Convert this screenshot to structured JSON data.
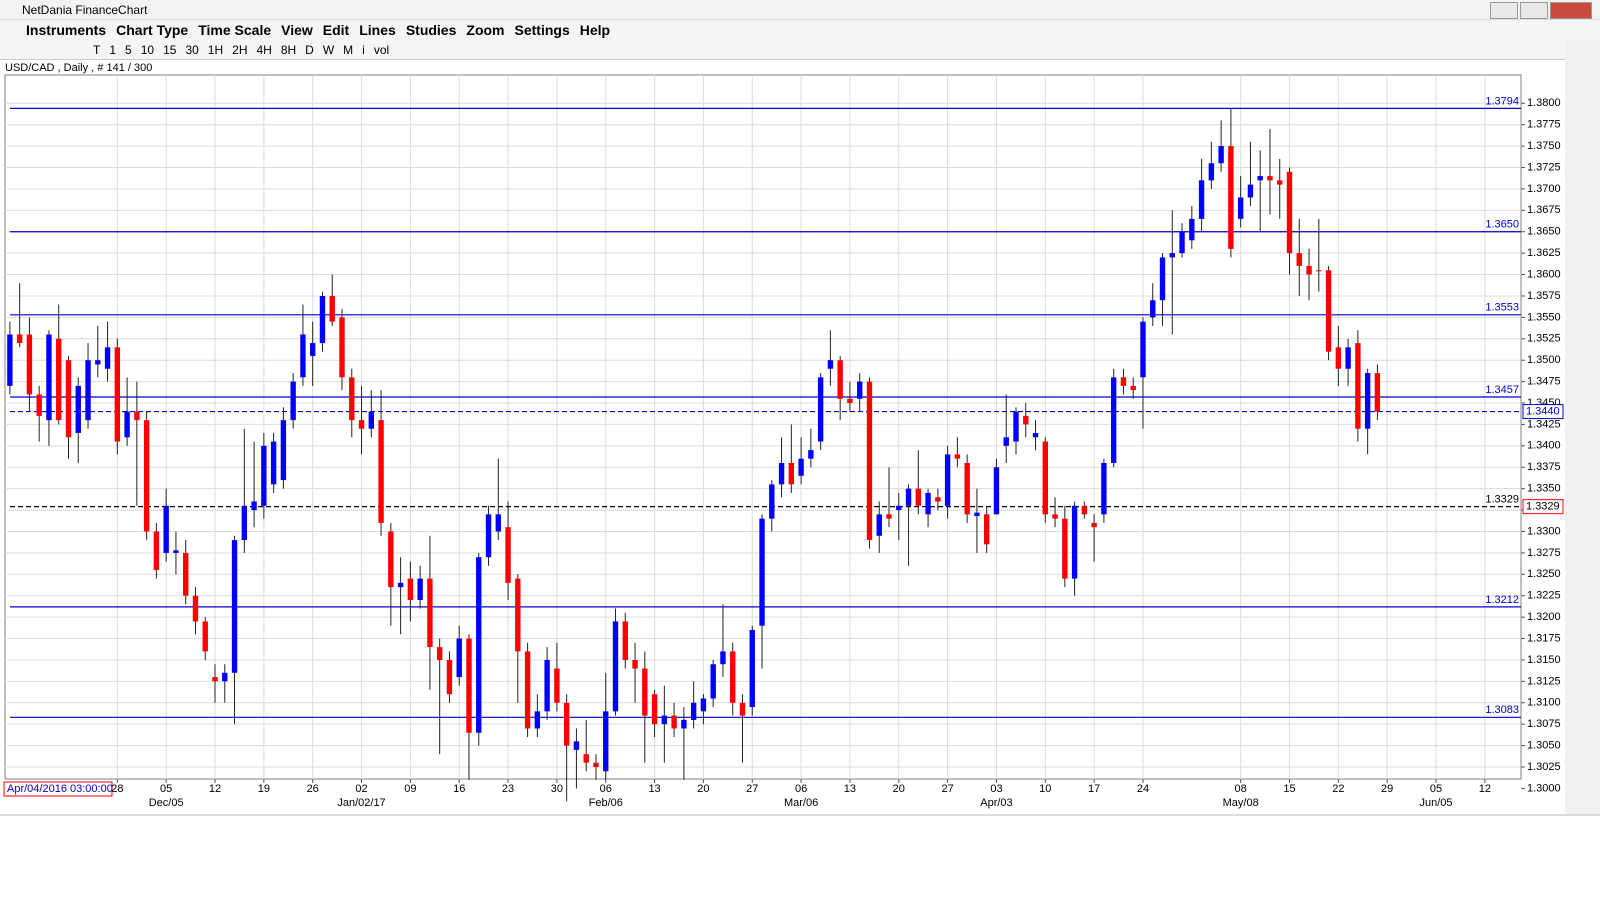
{
  "window_title": "NetDania FinanceChart",
  "menu": [
    "Instruments",
    "Chart Type",
    "Time Scale",
    "View",
    "Edit",
    "Lines",
    "Studies",
    "Zoom",
    "Settings",
    "Help"
  ],
  "toolbar": [
    "T",
    "1",
    "5",
    "10",
    "15",
    "30",
    "1H",
    "2H",
    "4H",
    "8H",
    "D",
    "W",
    "M",
    "i",
    "vol"
  ],
  "chart_data": {
    "type": "candlestick",
    "title": "USD/CAD , Daily , # 141 / 300",
    "cursor_label": "Apr/04/2016 03:00:00",
    "up_color": "#0000ff",
    "down_color": "#ff0000",
    "grid": true,
    "xlim": [
      -0.5,
      154.7
    ],
    "ylim": [
      1.3011,
      1.3833
    ],
    "yticks": [
      {
        "value": 1.3,
        "label": "1.3000"
      },
      {
        "value": 1.3025,
        "label": "1.3025"
      },
      {
        "value": 1.305,
        "label": "1.3050"
      },
      {
        "value": 1.3075,
        "label": "1.3075"
      },
      {
        "value": 1.31,
        "label": "1.3100"
      },
      {
        "value": 1.3125,
        "label": "1.3125"
      },
      {
        "value": 1.315,
        "label": "1.3150"
      },
      {
        "value": 1.3175,
        "label": "1.3175"
      },
      {
        "value": 1.32,
        "label": "1.3200"
      },
      {
        "value": 1.3225,
        "label": "1.3225"
      },
      {
        "value": 1.325,
        "label": "1.3250"
      },
      {
        "value": 1.3275,
        "label": "1.3275"
      },
      {
        "value": 1.33,
        "label": "1.3300"
      },
      {
        "value": 1.3325,
        "label": "1.3325"
      },
      {
        "value": 1.335,
        "label": "1.3350"
      },
      {
        "value": 1.3375,
        "label": "1.3375"
      },
      {
        "value": 1.34,
        "label": "1.3400"
      },
      {
        "value": 1.3425,
        "label": "1.3425"
      },
      {
        "value": 1.345,
        "label": "1.3450"
      },
      {
        "value": 1.3475,
        "label": "1.3475"
      },
      {
        "value": 1.35,
        "label": "1.3500"
      },
      {
        "value": 1.3525,
        "label": "1.3525"
      },
      {
        "value": 1.355,
        "label": "1.3550"
      },
      {
        "value": 1.3575,
        "label": "1.3575"
      },
      {
        "value": 1.36,
        "label": "1.3600"
      },
      {
        "value": 1.3625,
        "label": "1.3625"
      },
      {
        "value": 1.365,
        "label": "1.3650"
      },
      {
        "value": 1.3675,
        "label": "1.3675"
      },
      {
        "value": 1.37,
        "label": "1.3700"
      },
      {
        "value": 1.3725,
        "label": "1.3725"
      },
      {
        "value": 1.375,
        "label": "1.3750"
      },
      {
        "value": 1.3775,
        "label": "1.3775"
      },
      {
        "value": 1.38,
        "label": "1.3800"
      }
    ],
    "xticks": [
      {
        "value": 11,
        "label": "28"
      },
      {
        "value": 16,
        "label": "05"
      },
      {
        "value": 21,
        "label": "12"
      },
      {
        "value": 26,
        "label": "19"
      },
      {
        "value": 31,
        "label": "26"
      },
      {
        "value": 36,
        "label": "02"
      },
      {
        "value": 41,
        "label": "09"
      },
      {
        "value": 46,
        "label": "16"
      },
      {
        "value": 51,
        "label": "23"
      },
      {
        "value": 56,
        "label": "30"
      },
      {
        "value": 61,
        "label": "06"
      },
      {
        "value": 66,
        "label": "13"
      },
      {
        "value": 71,
        "label": "20"
      },
      {
        "value": 76,
        "label": "27"
      },
      {
        "value": 81,
        "label": "06"
      },
      {
        "value": 86,
        "label": "13"
      },
      {
        "value": 91,
        "label": "20"
      },
      {
        "value": 96,
        "label": "27"
      },
      {
        "value": 101,
        "label": "03"
      },
      {
        "value": 106,
        "label": "10"
      },
      {
        "value": 111,
        "label": "17"
      },
      {
        "value": 116,
        "label": "24"
      },
      {
        "value": 126,
        "label": "08"
      },
      {
        "value": 131,
        "label": "15"
      },
      {
        "value": 136,
        "label": "22"
      },
      {
        "value": 141,
        "label": "29"
      },
      {
        "value": 146,
        "label": "05"
      },
      {
        "value": 151,
        "label": "12"
      }
    ],
    "month_ticks": [
      {
        "value": 16,
        "label": "Dec/05"
      },
      {
        "value": 36,
        "label": "Jan/02/17"
      },
      {
        "value": 61,
        "label": "Feb/06"
      },
      {
        "value": 81,
        "label": "Mar/06"
      },
      {
        "value": 101,
        "label": "Apr/03"
      },
      {
        "value": 126,
        "label": "May/08"
      },
      {
        "value": 146,
        "label": "Jun/05"
      }
    ],
    "levels": [
      {
        "value": 1.3794,
        "label": "1.3794",
        "color": "#0000cc",
        "style": "solid"
      },
      {
        "value": 1.365,
        "label": "1.3650",
        "color": "#0000cc",
        "style": "solid"
      },
      {
        "value": 1.3553,
        "label": "1.3553",
        "color": "#0000cc",
        "style": "solid"
      },
      {
        "value": 1.3457,
        "label": "1.3457",
        "color": "#0000cc",
        "style": "solid"
      },
      {
        "value": 1.3212,
        "label": "1.3212",
        "color": "#0000cc",
        "style": "solid"
      },
      {
        "value": 1.3083,
        "label": "1.3083",
        "color": "#0000cc",
        "style": "solid"
      },
      {
        "value": 1.344,
        "label": "1.3440",
        "color": "#0000cc",
        "style": "dashed",
        "axis_box": "#0000cc"
      },
      {
        "value": 1.3329,
        "label": "1.3329",
        "color": "#000000",
        "style": "dashed",
        "axis_box": "#ff0000"
      }
    ],
    "ohlc": [
      [
        1.347,
        1.3545,
        1.346,
        1.353
      ],
      [
        1.353,
        1.359,
        1.3515,
        1.352
      ],
      [
        1.353,
        1.355,
        1.344,
        1.346
      ],
      [
        1.346,
        1.347,
        1.3405,
        1.3435
      ],
      [
        1.343,
        1.3535,
        1.34,
        1.353
      ],
      [
        1.3525,
        1.3565,
        1.3425,
        1.343
      ],
      [
        1.35,
        1.3505,
        1.3385,
        1.341
      ],
      [
        1.3415,
        1.348,
        1.338,
        1.347
      ],
      [
        1.343,
        1.352,
        1.342,
        1.35
      ],
      [
        1.3495,
        1.354,
        1.348,
        1.35
      ],
      [
        1.349,
        1.3545,
        1.3475,
        1.3515
      ],
      [
        1.3515,
        1.3525,
        1.339,
        1.3405
      ],
      [
        1.341,
        1.348,
        1.34,
        1.344
      ],
      [
        1.344,
        1.3475,
        1.333,
        1.343
      ],
      [
        1.343,
        1.344,
        1.329,
        1.33
      ],
      [
        1.33,
        1.331,
        1.3245,
        1.3255
      ],
      [
        1.3275,
        1.335,
        1.3265,
        1.333
      ],
      [
        1.3275,
        1.33,
        1.325,
        1.3278
      ],
      [
        1.3275,
        1.329,
        1.3215,
        1.3225
      ],
      [
        1.3225,
        1.3235,
        1.318,
        1.3195
      ],
      [
        1.3195,
        1.32,
        1.315,
        1.316
      ],
      [
        1.313,
        1.3145,
        1.31,
        1.3125
      ],
      [
        1.3125,
        1.3145,
        1.31,
        1.3135
      ],
      [
        1.3135,
        1.3295,
        1.3075,
        1.329
      ],
      [
        1.329,
        1.342,
        1.3275,
        1.333
      ],
      [
        1.3325,
        1.3405,
        1.3305,
        1.3335
      ],
      [
        1.333,
        1.3415,
        1.3315,
        1.34
      ],
      [
        1.3355,
        1.3415,
        1.3345,
        1.3405
      ],
      [
        1.336,
        1.3445,
        1.335,
        1.343
      ],
      [
        1.343,
        1.3485,
        1.342,
        1.3475
      ],
      [
        1.348,
        1.3565,
        1.347,
        1.353
      ],
      [
        1.3505,
        1.3545,
        1.347,
        1.352
      ],
      [
        1.352,
        1.358,
        1.351,
        1.3575
      ],
      [
        1.3575,
        1.36,
        1.354,
        1.3545
      ],
      [
        1.355,
        1.356,
        1.3465,
        1.348
      ],
      [
        1.348,
        1.349,
        1.341,
        1.343
      ],
      [
        1.343,
        1.347,
        1.339,
        1.342
      ],
      [
        1.342,
        1.3465,
        1.341,
        1.344
      ],
      [
        1.343,
        1.3465,
        1.3295,
        1.331
      ],
      [
        1.33,
        1.331,
        1.319,
        1.3235
      ],
      [
        1.3235,
        1.327,
        1.318,
        1.324
      ],
      [
        1.3245,
        1.3265,
        1.3195,
        1.322
      ],
      [
        1.322,
        1.326,
        1.321,
        1.3245
      ],
      [
        1.3245,
        1.3295,
        1.3115,
        1.3165
      ],
      [
        1.3165,
        1.3175,
        1.304,
        1.315
      ],
      [
        1.315,
        1.316,
        1.31,
        1.311
      ],
      [
        1.313,
        1.319,
        1.312,
        1.3175
      ],
      [
        1.3175,
        1.318,
        1.301,
        1.3065
      ],
      [
        1.3065,
        1.3275,
        1.305,
        1.327
      ],
      [
        1.327,
        1.333,
        1.326,
        1.332
      ],
      [
        1.33,
        1.3385,
        1.329,
        1.332
      ],
      [
        1.3305,
        1.3335,
        1.322,
        1.324
      ],
      [
        1.3245,
        1.325,
        1.31,
        1.316
      ],
      [
        1.316,
        1.317,
        1.306,
        1.307
      ],
      [
        1.307,
        1.311,
        1.306,
        1.309
      ],
      [
        1.309,
        1.3165,
        1.308,
        1.315
      ],
      [
        1.314,
        1.317,
        1.309,
        1.31
      ],
      [
        1.31,
        1.311,
        1.2985,
        1.305
      ],
      [
        1.3045,
        1.307,
        1.3,
        1.3055
      ],
      [
        1.304,
        1.308,
        1.302,
        1.303
      ],
      [
        1.303,
        1.304,
        1.301,
        1.3025
      ],
      [
        1.302,
        1.3135,
        1.301,
        1.309
      ],
      [
        1.309,
        1.321,
        1.3085,
        1.3195
      ],
      [
        1.3195,
        1.3205,
        1.314,
        1.315
      ],
      [
        1.315,
        1.317,
        1.31,
        1.314
      ],
      [
        1.314,
        1.316,
        1.303,
        1.3085
      ],
      [
        1.311,
        1.3115,
        1.306,
        1.3075
      ],
      [
        1.3075,
        1.312,
        1.303,
        1.3085
      ],
      [
        1.3085,
        1.31,
        1.306,
        1.307
      ],
      [
        1.307,
        1.3095,
        1.301,
        1.308
      ],
      [
        1.308,
        1.3125,
        1.307,
        1.31
      ],
      [
        1.309,
        1.311,
        1.3075,
        1.3105
      ],
      [
        1.3105,
        1.315,
        1.3095,
        1.3145
      ],
      [
        1.3145,
        1.3215,
        1.313,
        1.316
      ],
      [
        1.316,
        1.317,
        1.3085,
        1.31
      ],
      [
        1.31,
        1.311,
        1.303,
        1.3085
      ],
      [
        1.3095,
        1.319,
        1.3085,
        1.3185
      ],
      [
        1.319,
        1.332,
        1.314,
        1.3315
      ],
      [
        1.3315,
        1.336,
        1.33,
        1.3355
      ],
      [
        1.3355,
        1.341,
        1.334,
        1.338
      ],
      [
        1.338,
        1.3425,
        1.3345,
        1.3355
      ],
      [
        1.3365,
        1.341,
        1.3355,
        1.3385
      ],
      [
        1.3385,
        1.342,
        1.3375,
        1.3395
      ],
      [
        1.3405,
        1.3485,
        1.3395,
        1.348
      ],
      [
        1.349,
        1.3535,
        1.347,
        1.35
      ],
      [
        1.35,
        1.3505,
        1.343,
        1.3455
      ],
      [
        1.3455,
        1.3475,
        1.344,
        1.345
      ],
      [
        1.3455,
        1.3485,
        1.344,
        1.3475
      ],
      [
        1.3475,
        1.348,
        1.328,
        1.329
      ],
      [
        1.3295,
        1.3335,
        1.3275,
        1.332
      ],
      [
        1.332,
        1.3375,
        1.3305,
        1.3315
      ],
      [
        1.3325,
        1.3345,
        1.329,
        1.333
      ],
      [
        1.333,
        1.3355,
        1.326,
        1.335
      ],
      [
        1.335,
        1.3395,
        1.332,
        1.333
      ],
      [
        1.332,
        1.335,
        1.3305,
        1.3345
      ],
      [
        1.334,
        1.335,
        1.3325,
        1.3335
      ],
      [
        1.333,
        1.34,
        1.3315,
        1.339
      ],
      [
        1.339,
        1.341,
        1.3375,
        1.3385
      ],
      [
        1.338,
        1.339,
        1.331,
        1.332
      ],
      [
        1.3318,
        1.335,
        1.3275,
        1.3322
      ],
      [
        1.332,
        1.333,
        1.3275,
        1.3285
      ],
      [
        1.332,
        1.3385,
        1.332,
        1.3375
      ],
      [
        1.34,
        1.346,
        1.338,
        1.341
      ],
      [
        1.3405,
        1.3445,
        1.339,
        1.344
      ],
      [
        1.3435,
        1.345,
        1.341,
        1.3425
      ],
      [
        1.341,
        1.343,
        1.3395,
        1.3415
      ],
      [
        1.3405,
        1.341,
        1.331,
        1.332
      ],
      [
        1.332,
        1.334,
        1.3305,
        1.3315
      ],
      [
        1.3315,
        1.333,
        1.3235,
        1.3245
      ],
      [
        1.3245,
        1.3335,
        1.3225,
        1.333
      ],
      [
        1.333,
        1.3335,
        1.3315,
        1.332
      ],
      [
        1.331,
        1.332,
        1.3265,
        1.3305
      ],
      [
        1.332,
        1.3385,
        1.331,
        1.338
      ],
      [
        1.338,
        1.349,
        1.3375,
        1.348
      ],
      [
        1.348,
        1.349,
        1.346,
        1.347
      ],
      [
        1.347,
        1.348,
        1.3455,
        1.3465
      ],
      [
        1.348,
        1.355,
        1.342,
        1.3545
      ],
      [
        1.355,
        1.359,
        1.354,
        1.357
      ],
      [
        1.357,
        1.3625,
        1.354,
        1.362
      ],
      [
        1.362,
        1.3675,
        1.353,
        1.3625
      ],
      [
        1.3625,
        1.366,
        1.362,
        1.365
      ],
      [
        1.364,
        1.368,
        1.363,
        1.3665
      ],
      [
        1.3665,
        1.3735,
        1.365,
        1.371
      ],
      [
        1.371,
        1.3755,
        1.37,
        1.373
      ],
      [
        1.373,
        1.378,
        1.372,
        1.375
      ],
      [
        1.375,
        1.3794,
        1.362,
        1.363
      ],
      [
        1.3665,
        1.3715,
        1.3655,
        1.369
      ],
      [
        1.369,
        1.3755,
        1.368,
        1.3705
      ],
      [
        1.371,
        1.3745,
        1.365,
        1.3715
      ],
      [
        1.3715,
        1.377,
        1.367,
        1.371
      ],
      [
        1.371,
        1.3735,
        1.3665,
        1.3705
      ],
      [
        1.372,
        1.3725,
        1.36,
        1.3625
      ],
      [
        1.3625,
        1.3665,
        1.3575,
        1.361
      ],
      [
        1.361,
        1.363,
        1.357,
        1.36
      ],
      [
        1.3605,
        1.3665,
        1.358,
        1.3604
      ],
      [
        1.3605,
        1.361,
        1.35,
        1.351
      ],
      [
        1.3515,
        1.354,
        1.347,
        1.349
      ],
      [
        1.349,
        1.3525,
        1.347,
        1.3515
      ],
      [
        1.352,
        1.3535,
        1.3405,
        1.342
      ],
      [
        1.342,
        1.349,
        1.339,
        1.3485
      ],
      [
        1.3485,
        1.3495,
        1.343,
        1.344
      ]
    ]
  }
}
